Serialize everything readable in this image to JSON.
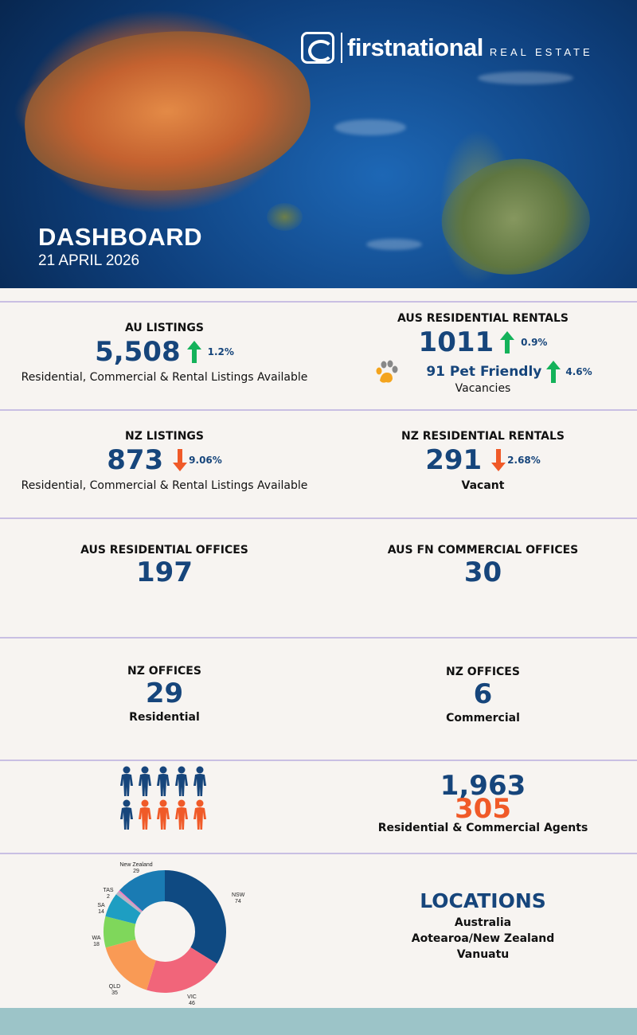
{
  "brand": {
    "name": "firstnational",
    "subtitle": "REAL ESTATE"
  },
  "header": {
    "title": "DASHBOARD",
    "date": "21 APRIL 2026"
  },
  "au_listings": {
    "label": "AU LISTINGS",
    "value": "5,508",
    "change": "1.2%",
    "direction": "up",
    "description": "Residential, Commercial & Rental Listings Available"
  },
  "aus_rentals": {
    "label": "AUS RESIDENTIAL RENTALS",
    "value": "1011",
    "change": "0.9%",
    "direction": "up",
    "pet_friendly": "91 Pet Friendly",
    "pet_change": "4.6%",
    "pet_direction": "up",
    "description": "Vacancies"
  },
  "nz_listings": {
    "label": "NZ LISTINGS",
    "value": "873",
    "change": "9.06%",
    "direction": "down",
    "description": "Residential, Commercial & Rental Listings Available"
  },
  "nz_rentals": {
    "label": "NZ RESIDENTIAL RENTALS",
    "value": "291",
    "change": "2.68%",
    "direction": "down",
    "description": "Vacant"
  },
  "aus_res_offices": {
    "label": "AUS RESIDENTIAL OFFICES",
    "value": "197"
  },
  "aus_comm_offices": {
    "label": "AUS FN COMMERCIAL OFFICES",
    "value": "30"
  },
  "nz_offices_res": {
    "label": "NZ OFFICES",
    "value": "29",
    "description": "Residential"
  },
  "nz_offices_comm": {
    "label": "NZ OFFICES",
    "value": "6",
    "description": "Commercial"
  },
  "agents": {
    "value_primary": "1,963",
    "value_secondary": "305",
    "description": "Residential & Commercial Agents",
    "icon_total": 10,
    "icon_highlighted": 4
  },
  "locations": {
    "title": "LOCATIONS",
    "items": [
      "Australia",
      "Aotearoa/New Zealand",
      "Vanuatu"
    ]
  },
  "colors": {
    "navy": "#16457b",
    "orange": "#f05a28",
    "green": "#14b25a",
    "divider": "#c9bfe3",
    "footer": "#9cc4c8"
  },
  "chart_data": {
    "type": "pie",
    "donut": true,
    "slices": [
      {
        "label": "NSW",
        "value": 74,
        "color": "#0f4a82"
      },
      {
        "label": "VIC",
        "value": 46,
        "color": "#f1657a"
      },
      {
        "label": "QLD",
        "value": 35,
        "color": "#f99a55"
      },
      {
        "label": "WA",
        "value": 18,
        "color": "#7fd75b"
      },
      {
        "label": "SA",
        "value": 14,
        "color": "#1e9ec2"
      },
      {
        "label": "TAS",
        "value": 2,
        "color": "#b7b4c4"
      },
      {
        "label": "",
        "value": 1,
        "color": "#f07dbf"
      },
      {
        "label": "New Zealand",
        "value": 29,
        "color": "#1a7bb3"
      }
    ]
  }
}
